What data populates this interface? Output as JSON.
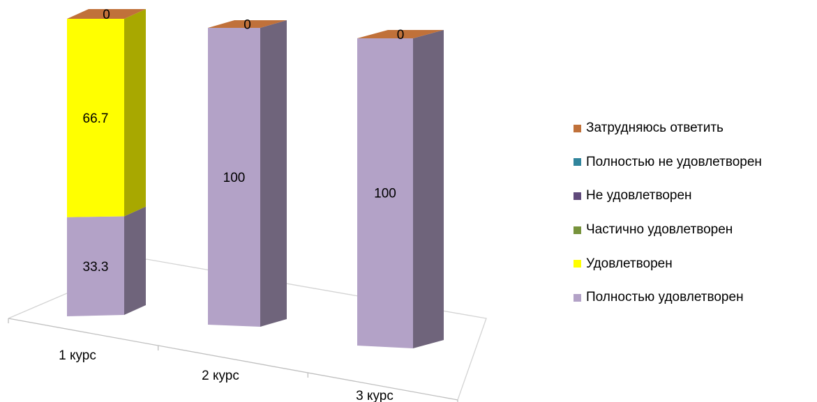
{
  "chart_data": {
    "type": "bar",
    "stacked": true,
    "three_d": true,
    "title": "",
    "xlabel": "",
    "ylabel": "",
    "ylim": [
      0,
      100
    ],
    "grid": false,
    "legend_position": "right",
    "categories": [
      "1 курс",
      "2 курс",
      "3 курс"
    ],
    "series": [
      {
        "name": "Полностью удовлетворен",
        "color": "#b3a2c7",
        "values": [
          33.3,
          100,
          100
        ]
      },
      {
        "name": "Удовлетворен",
        "color": "#ffff00",
        "values": [
          66.7,
          0,
          0
        ]
      },
      {
        "name": "Частично удовлетворен",
        "color": "#77933c",
        "values": [
          0,
          0,
          0
        ]
      },
      {
        "name": "Не удовлетворен",
        "color": "#604a7b",
        "values": [
          0,
          0,
          0
        ]
      },
      {
        "name": "Полностью не удовлетворен",
        "color": "#31859c",
        "values": [
          0,
          0,
          0
        ]
      },
      {
        "name": "Затрудняюсь ответить",
        "color": "#c0713a",
        "values": [
          0,
          0,
          0
        ]
      }
    ],
    "data_labels": [
      {
        "category": 0,
        "series": 0,
        "text": "33.3"
      },
      {
        "category": 0,
        "series": 1,
        "text": "66.7"
      },
      {
        "category": 0,
        "series": 5,
        "text": "0"
      },
      {
        "category": 1,
        "series": 0,
        "text": "100"
      },
      {
        "category": 1,
        "series": 5,
        "text": "0"
      },
      {
        "category": 2,
        "series": 0,
        "text": "100"
      },
      {
        "category": 2,
        "series": 5,
        "text": "0"
      }
    ]
  }
}
